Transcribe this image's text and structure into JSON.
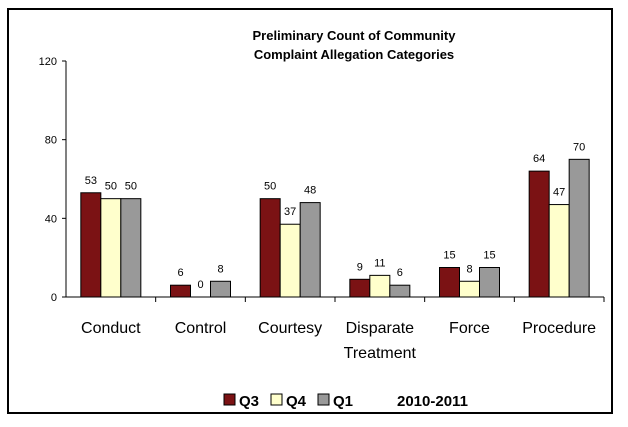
{
  "chart_data": {
    "type": "bar",
    "title_lines": [
      "Preliminary Count of Community",
      "Complaint Allegation Categories"
    ],
    "categories": [
      [
        "Conduct"
      ],
      [
        "Control"
      ],
      [
        "Courtesy"
      ],
      [
        "Disparate",
        "Treatment"
      ],
      [
        "Force"
      ],
      [
        "Procedure"
      ]
    ],
    "series": [
      {
        "name": "Q3",
        "color": "#7B1214",
        "values": [
          53,
          6,
          50,
          9,
          15,
          64
        ]
      },
      {
        "name": "Q4",
        "color": "#FFFFCC",
        "values": [
          50,
          0,
          37,
          11,
          8,
          47
        ]
      },
      {
        "name": "Q1",
        "color": "#999999",
        "values": [
          50,
          8,
          48,
          6,
          15,
          70
        ]
      }
    ],
    "ylim": [
      0,
      120
    ],
    "yticks": [
      0,
      40,
      80,
      120
    ],
    "legend_note": "2010-2011",
    "legend_position": "bottom",
    "grid": false
  }
}
